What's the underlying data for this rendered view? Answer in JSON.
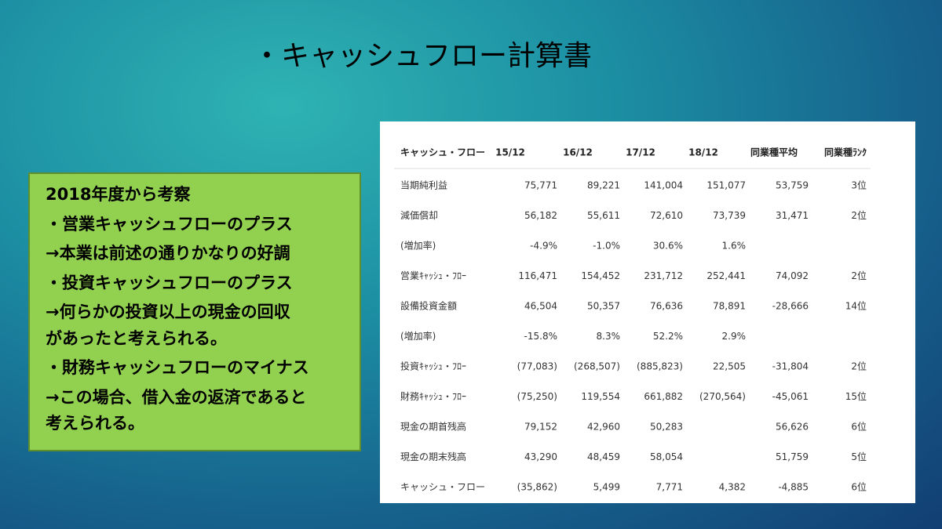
{
  "title": "・キャッシュフロー計算書",
  "note": {
    "lines": [
      "2018年度から考察",
      "・営業キャッシュフローのプラス",
      "→本業は前述の通りかなりの好調",
      "・投資キャッシュフローのプラス",
      "→何らかの投資以上の現金の回収",
      "があったと考えられる。",
      "・財務キャッシュフローのマイナス",
      "→この場合、借入金の返済であると",
      "考えられる。"
    ]
  },
  "table": {
    "header": [
      "キャッシュ・フロー",
      "15/12",
      "16/12",
      "17/12",
      "18/12",
      "同業種平均",
      "同業種ﾗﾝｸ"
    ],
    "rows": [
      [
        "当期純利益",
        "75,771",
        "89,221",
        "141,004",
        "151,077",
        "53,759",
        "3位"
      ],
      [
        "減価償却",
        "56,182",
        "55,611",
        "72,610",
        "73,739",
        "31,471",
        "2位"
      ],
      [
        "(増加率)",
        "-4.9%",
        "-1.0%",
        "30.6%",
        "1.6%",
        null,
        null
      ],
      [
        "営業ｷｬｯｼｭ・ﾌﾛｰ",
        "116,471",
        "154,452",
        "231,712",
        "252,441",
        "74,092",
        "2位"
      ],
      [
        "設備投資金額",
        "46,504",
        "50,357",
        "76,636",
        "78,891",
        "-28,666",
        "14位"
      ],
      [
        "(増加率)",
        "-15.8%",
        "8.3%",
        "52.2%",
        "2.9%",
        null,
        null
      ],
      [
        "投資ｷｬｯｼｭ・ﾌﾛｰ",
        "(77,083)",
        "(268,507)",
        "(885,823)",
        "22,505",
        "-31,804",
        "2位"
      ],
      [
        "財務ｷｬｯｼｭ・ﾌﾛｰ",
        "(75,250)",
        "119,554",
        "661,882",
        "(270,564)",
        "-45,061",
        "15位"
      ],
      [
        "現金の期首残高",
        "79,152",
        "42,960",
        "50,283",
        null,
        "56,626",
        "6位"
      ],
      [
        "現金の期末残高",
        "43,290",
        "48,459",
        "58,054",
        null,
        "51,759",
        "5位"
      ],
      [
        "キャッシュ・フロー",
        "(35,862)",
        "5,499",
        "7,771",
        "4,382",
        "-4,885",
        "6位"
      ]
    ]
  }
}
